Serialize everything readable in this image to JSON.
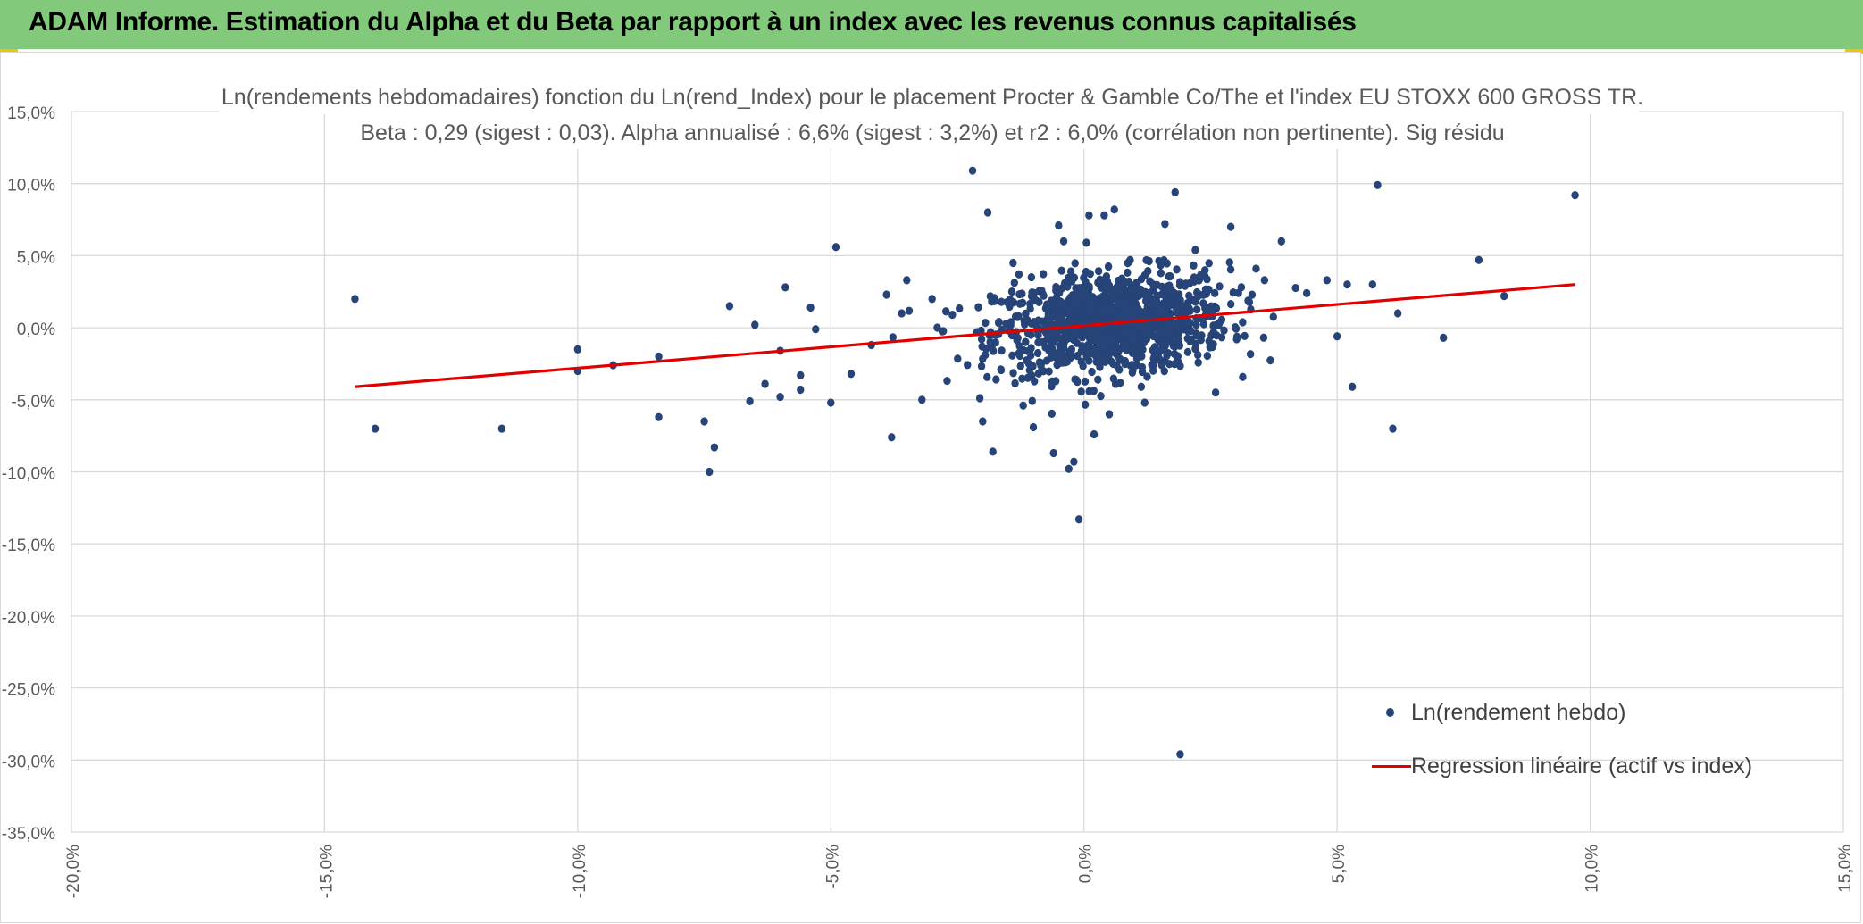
{
  "header": {
    "title": "ADAM Informe. Estimation du Alpha et du Beta par rapport à un index avec les revenus connus capitalisés"
  },
  "colors": {
    "header_bg": "#82c97b",
    "points": "#264478",
    "regression": "#e00000",
    "grid": "#d9d9d9",
    "text": "#595959"
  },
  "chart_data": {
    "type": "scatter",
    "title_line1": "Ln(rendements hebdomadaires) fonction du Ln(rend_Index) pour le placement Procter & Gamble Co/The et l'index EU STOXX 600 GROSS TR.",
    "title_line2": "Beta : 0,29 (sigest : 0,03). Alpha annualisé : 6,6% (sigest : 3,2%) et r2 : 6,0% (corrélation non pertinente). Sig résidu",
    "xlim": [
      -20,
      15
    ],
    "ylim": [
      -35,
      15
    ],
    "x_ticks": [
      "-20,0%",
      "-15,0%",
      "-10,0%",
      "-5,0%",
      "0,0%",
      "5,0%",
      "10,0%",
      "15,0%"
    ],
    "y_ticks": [
      "15,0%",
      "10,0%",
      "5,0%",
      "0,0%",
      "-5,0%",
      "-10,0%",
      "-15,0%",
      "-20,0%",
      "-25,0%",
      "-30,0%",
      "-35,0%"
    ],
    "grid": true,
    "legend_position": "bottom-right",
    "series": [
      {
        "name": "Ln(rendement hebdo)",
        "kind": "scatter",
        "points": [
          [
            -14.4,
            2.0
          ],
          [
            -14.0,
            -7.0
          ],
          [
            -11.5,
            -7.0
          ],
          [
            -10.0,
            -1.5
          ],
          [
            -10.0,
            -3.0
          ],
          [
            -9.3,
            -2.6
          ],
          [
            -8.4,
            -6.2
          ],
          [
            -8.4,
            -2.0
          ],
          [
            -7.5,
            -6.5
          ],
          [
            -7.4,
            -10.0
          ],
          [
            -7.3,
            -8.3
          ],
          [
            -7.0,
            1.5
          ],
          [
            -6.6,
            -5.1
          ],
          [
            -6.5,
            0.2
          ],
          [
            -6.3,
            -3.9
          ],
          [
            -6.0,
            -1.6
          ],
          [
            -6.0,
            -4.8
          ],
          [
            -5.9,
            2.8
          ],
          [
            -5.6,
            -3.3
          ],
          [
            -5.6,
            -4.3
          ],
          [
            -5.4,
            1.4
          ],
          [
            -5.3,
            -0.1
          ],
          [
            -5.0,
            -5.2
          ],
          [
            -4.9,
            5.6
          ],
          [
            -4.6,
            -3.2
          ],
          [
            -4.2,
            -1.2
          ],
          [
            -3.9,
            2.3
          ],
          [
            -3.8,
            -7.6
          ],
          [
            -3.6,
            1.0
          ],
          [
            -3.5,
            3.3
          ],
          [
            -3.2,
            -5.0
          ],
          [
            -3.0,
            2.0
          ],
          [
            -2.6,
            0.9
          ],
          [
            -2.2,
            10.9
          ],
          [
            -2.0,
            -6.5
          ],
          [
            -1.9,
            8.0
          ],
          [
            -1.8,
            -8.6
          ],
          [
            -1.4,
            4.5
          ],
          [
            -1.2,
            -5.4
          ],
          [
            -1.0,
            -6.9
          ],
          [
            -0.9,
            0.5
          ],
          [
            -0.6,
            -8.7
          ],
          [
            -0.5,
            7.1
          ],
          [
            -0.4,
            6.0
          ],
          [
            -0.3,
            -9.8
          ],
          [
            -0.2,
            -9.3
          ],
          [
            -0.1,
            -13.3
          ],
          [
            0.1,
            7.8
          ],
          [
            0.2,
            -7.4
          ],
          [
            0.4,
            7.8
          ],
          [
            0.5,
            -6.0
          ],
          [
            0.6,
            8.2
          ],
          [
            0.9,
            4.6
          ],
          [
            1.2,
            -5.2
          ],
          [
            1.6,
            7.2
          ],
          [
            1.8,
            9.4
          ],
          [
            1.9,
            -29.6
          ],
          [
            2.2,
            5.4
          ],
          [
            2.6,
            -4.5
          ],
          [
            2.9,
            7.0
          ],
          [
            3.4,
            4.1
          ],
          [
            3.9,
            6.0
          ],
          [
            4.4,
            2.4
          ],
          [
            4.8,
            3.3
          ],
          [
            5.0,
            -0.6
          ],
          [
            5.2,
            3.0
          ],
          [
            5.3,
            -4.1
          ],
          [
            5.7,
            3.0
          ],
          [
            5.8,
            9.9
          ],
          [
            6.1,
            -7.0
          ],
          [
            6.2,
            1.0
          ],
          [
            7.1,
            -0.7
          ],
          [
            7.8,
            4.7
          ],
          [
            8.3,
            2.2
          ],
          [
            9.7,
            9.2
          ]
        ]
      },
      {
        "name": "Regression linéaire (actif vs index)",
        "kind": "line",
        "points": [
          [
            -14.4,
            -4.1
          ],
          [
            9.7,
            3.0
          ]
        ]
      }
    ]
  }
}
